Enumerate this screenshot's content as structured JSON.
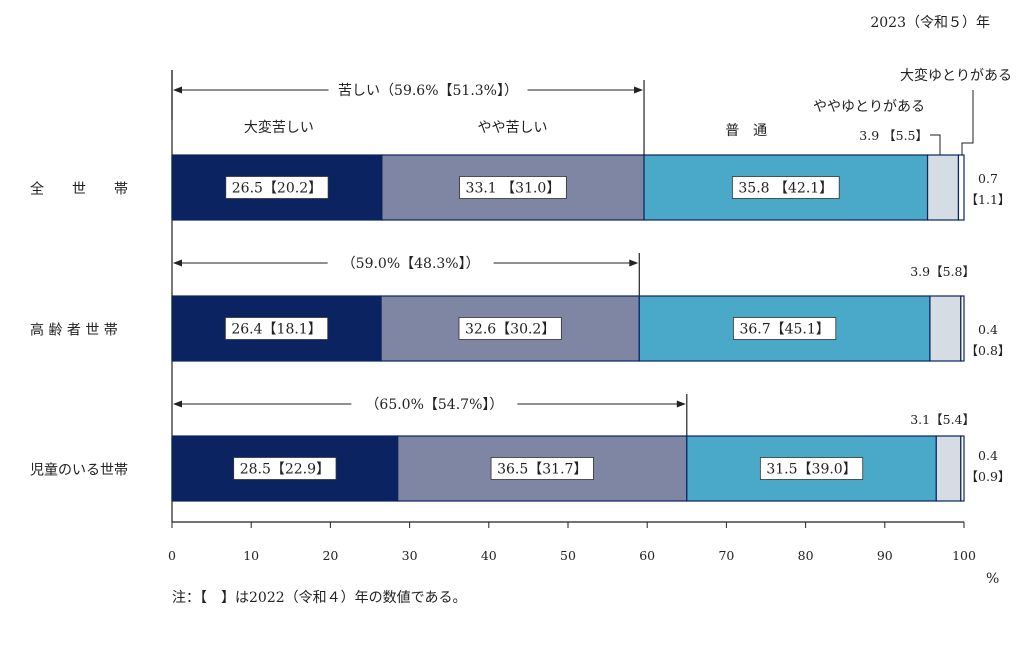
{
  "year_label": "2023（令和５）年",
  "unit": "%",
  "note": "注：【　】は2022（令和４）年の数値である。",
  "legend_labels": {
    "very_hard": "大変苦しい",
    "somewhat_hard": "やや苦しい",
    "normal": "普　通",
    "somewhat_comfortable": "ややゆとりがある",
    "very_comfortable": "大変ゆとりがある"
  },
  "hard_brackets": [
    "苦しい（59.6%【51.3%】）",
    "（59.0%【48.3%】）",
    "（65.0%【54.7%】）"
  ],
  "colors": {
    "very_hard": "#0b2461",
    "somewhat_hard": "#7f86a3",
    "normal": "#4aa9c8",
    "somewhat_comfortable": "#d6dce3",
    "very_comfortable": "#ffffff",
    "border": "#0b2461"
  },
  "chart_data": {
    "type": "bar",
    "orientation": "horizontal",
    "stacked": true,
    "categories": [
      "全　　世　　帯",
      "高 齢 者 世 帯",
      "児童のいる世帯"
    ],
    "series": [
      {
        "name": "大変苦しい",
        "values": [
          26.5,
          26.4,
          28.5
        ],
        "labels": [
          "26.5【20.2】",
          "26.4【18.1】",
          "28.5【22.9】"
        ]
      },
      {
        "name": "やや苦しい",
        "values": [
          33.1,
          32.6,
          36.5
        ],
        "labels": [
          "33.1 【31.0】",
          "32.6【30.2】",
          "36.5【31.7】"
        ]
      },
      {
        "name": "普通",
        "values": [
          35.8,
          36.7,
          31.5
        ],
        "labels": [
          "35.8 【42.1】",
          "36.7【45.1】",
          "31.5【39.0】"
        ]
      },
      {
        "name": "ややゆとりがある",
        "values": [
          3.9,
          3.9,
          3.1
        ],
        "labels": [
          "3.9 【5.5】",
          "3.9【5.8】",
          "3.1【5.4】"
        ]
      },
      {
        "name": "大変ゆとりがある",
        "values": [
          0.7,
          0.4,
          0.4
        ],
        "labels_top": [
          "0.7",
          "0.4",
          "0.4"
        ],
        "labels_bottom": [
          "【1.1】",
          "【0.8】",
          "【0.9】"
        ]
      }
    ],
    "x_ticks": [
      "0",
      "10",
      "20",
      "30",
      "40",
      "50",
      "60",
      "70",
      "80",
      "90",
      "100"
    ],
    "xlim": [
      0,
      100
    ],
    "hard_totals": [
      59.6,
      59.0,
      65.0
    ],
    "grid": false,
    "legend": "none"
  }
}
